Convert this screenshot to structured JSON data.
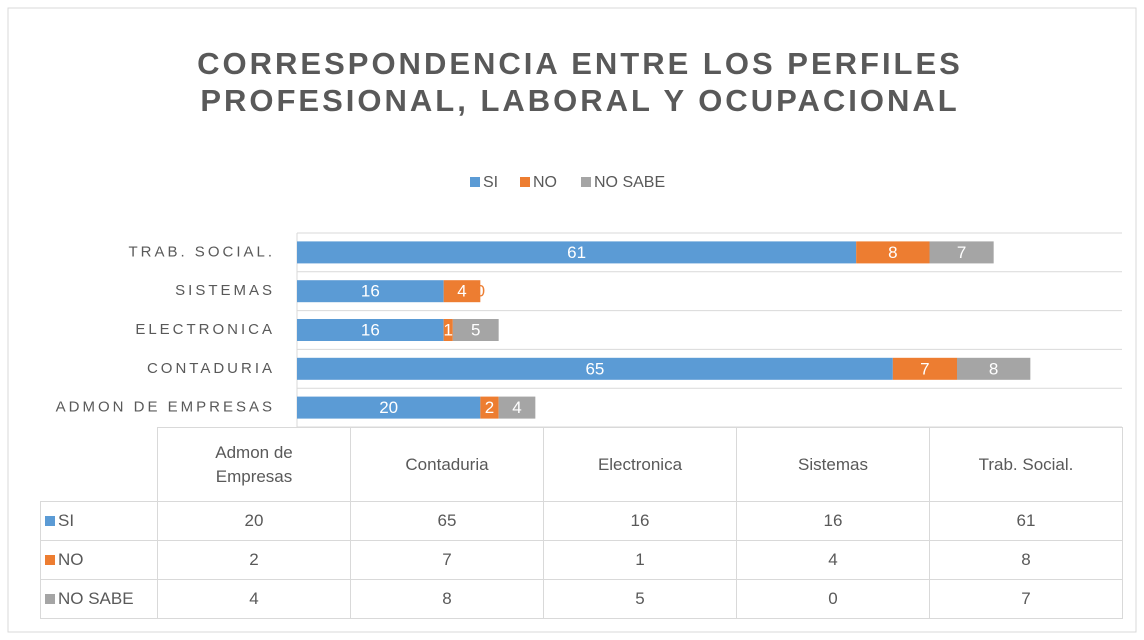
{
  "chart_data": {
    "type": "bar",
    "orientation": "horizontal",
    "stacked": true,
    "title": [
      "CORRESPONDENCIA ENTRE LOS PERFILES",
      "PROFESIONAL, LABORAL Y OCUPACIONAL"
    ],
    "categories": [
      "ADMON DE EMPRESAS",
      "CONTADURIA",
      "ELECTRONICA",
      "SISTEMAS",
      "TRAB. SOCIAL."
    ],
    "series": [
      {
        "name": "SI",
        "color": "#5b9bd5",
        "values": [
          20,
          65,
          16,
          16,
          61
        ]
      },
      {
        "name": "NO",
        "color": "#ed7d31",
        "values": [
          2,
          7,
          1,
          4,
          8
        ]
      },
      {
        "name": "NO SABE",
        "color": "#a5a5a5",
        "values": [
          4,
          8,
          5,
          0,
          7
        ]
      }
    ],
    "xlim": [
      0,
      90
    ],
    "grid": true,
    "legend": "top",
    "table": {
      "columns": [
        "Admon de Empresas",
        "Contaduria",
        "Electronica",
        "Sistemas",
        "Trab. Social."
      ]
    }
  }
}
